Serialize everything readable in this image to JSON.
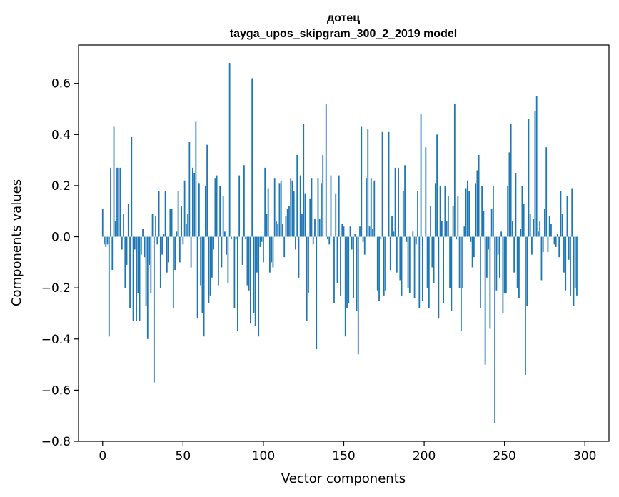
{
  "chart_data": {
    "type": "bar",
    "title": "дотец",
    "subtitle": "tayga_upos_skipgram_300_2_2019 model",
    "xlabel": "Vector components",
    "ylabel": "Components values",
    "xlim": [
      -15,
      315
    ],
    "ylim": [
      -0.8,
      0.75
    ],
    "xticks": [
      0,
      50,
      100,
      150,
      200,
      250,
      300
    ],
    "yticks": [
      -0.8,
      -0.6,
      -0.4,
      -0.2,
      0.0,
      0.2,
      0.4,
      0.6
    ],
    "grid": false,
    "bar_color": "#1f77b4",
    "values": [
      0.11,
      -0.03,
      -0.04,
      -0.03,
      -0.39,
      0.27,
      -0.13,
      0.43,
      0.06,
      0.27,
      0.27,
      0.27,
      -0.05,
      0.09,
      -0.2,
      -0.11,
      0.13,
      -0.28,
      0.39,
      -0.33,
      -0.05,
      -0.33,
      -0.22,
      -0.33,
      -0.07,
      0.03,
      -0.08,
      -0.27,
      -0.4,
      -0.11,
      -0.22,
      0.09,
      -0.57,
      0.08,
      -0.03,
      0.18,
      -0.2,
      -0.07,
      0.01,
      0.18,
      -0.14,
      -0.1,
      0.11,
      0.11,
      -0.28,
      -0.13,
      0.02,
      0.18,
      -0.1,
      0.12,
      -0.03,
      0.22,
      0.05,
      0.09,
      0.37,
      -0.12,
      0.27,
      0.25,
      0.45,
      -0.32,
      0.21,
      -0.19,
      -0.3,
      -0.39,
      0.2,
      0.36,
      -0.26,
      -0.23,
      -0.16,
      -0.05,
      0.23,
      0.24,
      -0.19,
      0.2,
      -0.12,
      0.16,
      0.02,
      -0.07,
      -0.18,
      0.68,
      -0.01,
      0.0,
      -0.28,
      -0.01,
      -0.37,
      0.24,
      0.0,
      -0.11,
      0.28,
      -0.01,
      -0.19,
      -0.21,
      -0.34,
      0.62,
      -0.3,
      -0.35,
      -0.14,
      -0.39,
      -0.04,
      -0.02,
      -0.1,
      0.27,
      0.09,
      0.19,
      -0.14,
      -0.1,
      -0.12,
      0.23,
      0.06,
      0.05,
      0.21,
      0.22,
      0.05,
      -0.08,
      0.08,
      0.11,
      0.12,
      0.23,
      0.22,
      0.18,
      -0.05,
      0.32,
      -0.16,
      0.24,
      0.09,
      0.44,
      0.17,
      -0.33,
      -0.22,
      0.15,
      0.23,
      -0.03,
      0.07,
      -0.44,
      0.23,
      0.07,
      0.21,
      0.32,
      0.0,
      0.52,
      -0.01,
      -0.03,
      0.24,
      0.0,
      -0.26,
      0.17,
      -0.18,
      0.24,
      -0.23,
      0.05,
      0.04,
      -0.39,
      -0.28,
      -0.26,
      0.04,
      -0.05,
      -0.24,
      0.01,
      -0.29,
      -0.46,
      0.04,
      0.43,
      -0.02,
      -0.07,
      0.23,
      0.42,
      0.04,
      0.23,
      0.03,
      0.22,
      0.0,
      -0.21,
      -0.25,
      -0.01,
      0.41,
      -0.23,
      -0.21,
      0.0,
      0.41,
      -0.13,
      0.08,
      0.02,
      0.27,
      -0.14,
      0.27,
      -0.17,
      -0.23,
      0.18,
      0.28,
      -0.02,
      -0.2,
      -0.22,
      0.0,
      0.02,
      -0.24,
      -0.03,
      0.18,
      -0.28,
      0.48,
      -0.25,
      0.0,
      0.35,
      -0.2,
      -0.28,
      0.12,
      -0.12,
      -0.18,
      0.21,
      0.4,
      -0.32,
      0.2,
      0.06,
      -0.26,
      0.2,
      0.06,
      0.16,
      -0.2,
      -0.29,
      0.12,
      0.52,
      -0.01,
      0.16,
      -0.2,
      -0.37,
      -0.2,
      0.04,
      0.19,
      0.22,
      0.18,
      -0.02,
      -0.12,
      -0.08,
      0.21,
      0.26,
      0.32,
      -0.28,
      0.2,
      0.1,
      -0.5,
      -0.16,
      -0.05,
      -0.36,
      0.11,
      0.2,
      -0.73,
      -0.21,
      -0.07,
      -0.16,
      0.02,
      -0.3,
      -0.22,
      -0.22,
      0.2,
      0.33,
      0.44,
      0.06,
      -0.14,
      0.25,
      -0.2,
      -0.24,
      0.03,
      0.2,
      0.13,
      -0.54,
      -0.27,
      0.46,
      0.09,
      -0.07,
      0.07,
      0.49,
      0.55,
      0.02,
      0.06,
      -0.17,
      -0.06,
      0.11,
      0.35,
      -0.06,
      0.08,
      0.05,
      0.0,
      -0.03,
      -0.04,
      0.01,
      -0.08,
      0.18,
      0.09,
      -0.14,
      -0.21,
      0.16,
      -0.09,
      -0.23,
      0.19,
      -0.27,
      -0.2,
      -0.23,
      0.0,
      0.0,
      0.0,
      0.0
    ]
  }
}
